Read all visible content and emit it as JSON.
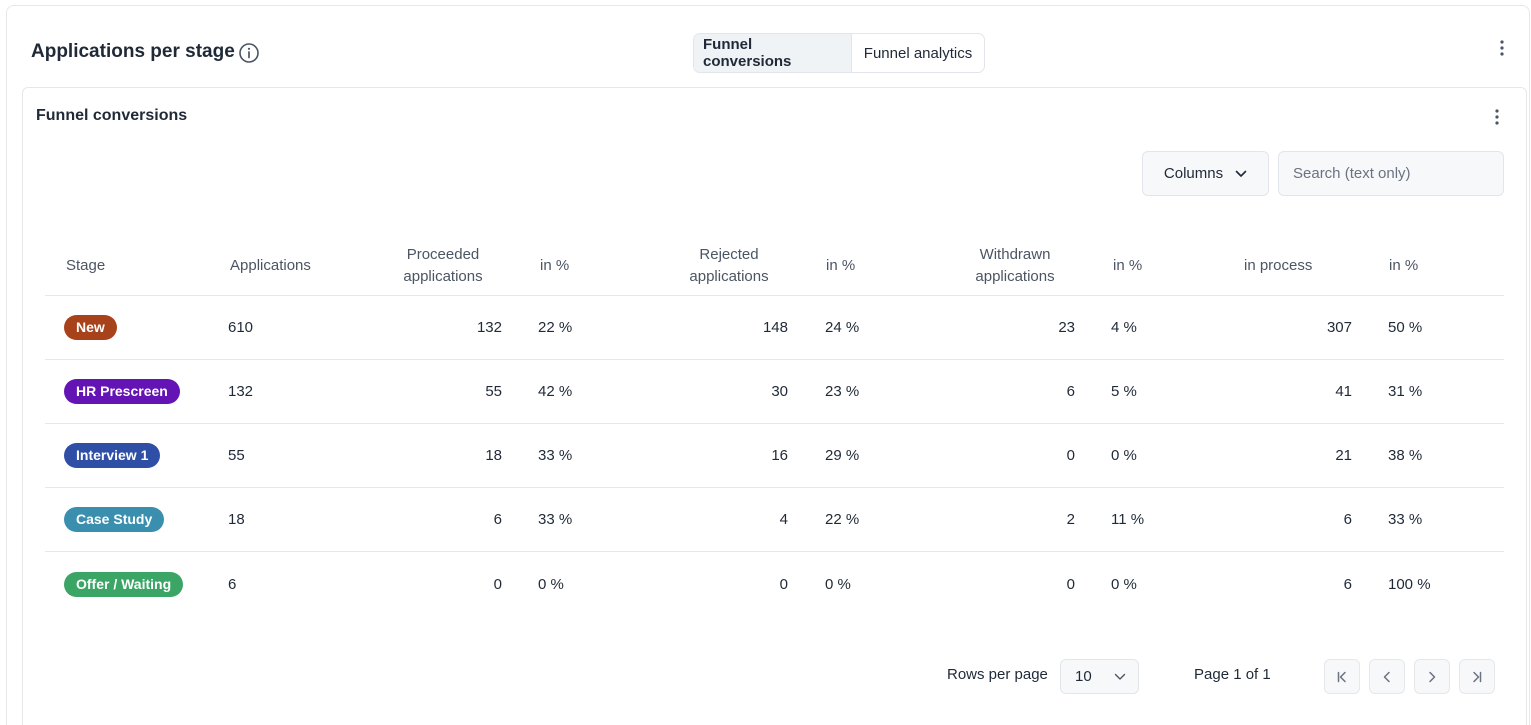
{
  "header": {
    "title": "Applications per stage",
    "tabs": [
      "Funnel conversions",
      "Funnel analytics"
    ]
  },
  "section": {
    "title": "Funnel conversions",
    "columns_label": "Columns",
    "search_placeholder": "Search (text only)"
  },
  "table": {
    "headers": {
      "stage": "Stage",
      "applications": "Applications",
      "proceeded_l1": "Proceeded",
      "proceeded_l2": "applications",
      "proceeded_pct": "in %",
      "rejected_l1": "Rejected",
      "rejected_l2": "applications",
      "rejected_pct": "in %",
      "withdrawn_l1": "Withdrawn",
      "withdrawn_l2": "applications",
      "withdrawn_pct": "in %",
      "in_process": "in process",
      "in_process_pct": "in %"
    },
    "rows": [
      {
        "stage": "New",
        "color": "#a8421a",
        "applications": "610",
        "proceeded": "132",
        "proceeded_pct": "22 %",
        "rejected": "148",
        "rejected_pct": "24 %",
        "withdrawn": "23",
        "withdrawn_pct": "4 %",
        "in_process": "307",
        "in_process_pct": "50 %"
      },
      {
        "stage": "HR Prescreen",
        "color": "#6414b5",
        "applications": "132",
        "proceeded": "55",
        "proceeded_pct": "42 %",
        "rejected": "30",
        "rejected_pct": "23 %",
        "withdrawn": "6",
        "withdrawn_pct": "5 %",
        "in_process": "41",
        "in_process_pct": "31 %"
      },
      {
        "stage": "Interview 1",
        "color": "#2f4fa6",
        "applications": "55",
        "proceeded": "18",
        "proceeded_pct": "33 %",
        "rejected": "16",
        "rejected_pct": "29 %",
        "withdrawn": "0",
        "withdrawn_pct": "0 %",
        "in_process": "21",
        "in_process_pct": "38 %"
      },
      {
        "stage": "Case Study",
        "color": "#3a8fae",
        "applications": "18",
        "proceeded": "6",
        "proceeded_pct": "33 %",
        "rejected": "4",
        "rejected_pct": "22 %",
        "withdrawn": "2",
        "withdrawn_pct": "11 %",
        "in_process": "6",
        "in_process_pct": "33 %"
      },
      {
        "stage": "Offer / Waiting",
        "color": "#3aa565",
        "applications": "6",
        "proceeded": "0",
        "proceeded_pct": "0 %",
        "rejected": "0",
        "rejected_pct": "0 %",
        "withdrawn": "0",
        "withdrawn_pct": "0 %",
        "in_process": "6",
        "in_process_pct": "100 %"
      }
    ]
  },
  "pagination": {
    "rows_per_page_label": "Rows per page",
    "rows_per_page_value": "10",
    "page_label": "Page 1 of 1"
  },
  "icons": {
    "info": "info-icon",
    "kebab": "more-vertical-icon",
    "chevron": "chevron-down-icon",
    "first": "first-page-icon",
    "prev": "prev-page-icon",
    "next": "next-page-icon",
    "last": "last-page-icon"
  }
}
